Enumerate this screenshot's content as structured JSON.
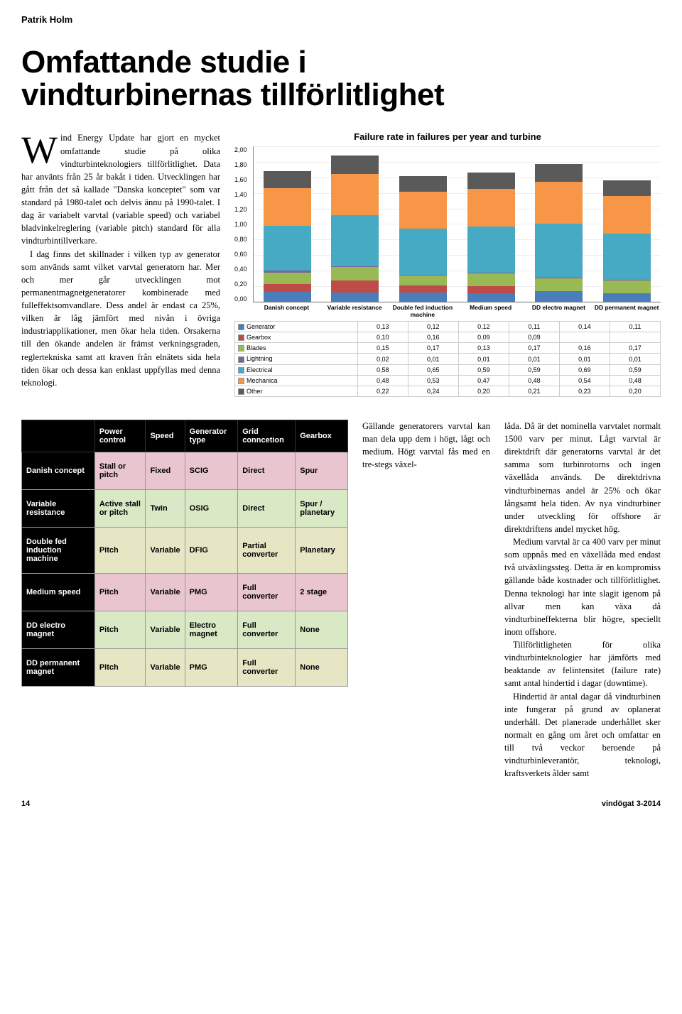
{
  "author": "Patrik Holm",
  "title_line1": "Omfattande studie i",
  "title_line2": "vindturbinernas tillförlitlighet",
  "chart": {
    "title": "Failure rate in failures per year and turbine",
    "ymax": 2.0,
    "yticks": [
      "2,00",
      "1,80",
      "1,60",
      "1,40",
      "1,20",
      "1,00",
      "0,80",
      "0,60",
      "0,40",
      "0,20",
      "0,00"
    ],
    "categories": [
      "Danish concept",
      "Variable resistance",
      "Double fed induction machine",
      "Medium speed",
      "DD electro magnet",
      "DD permanent magnet"
    ],
    "series": [
      {
        "name": "Generator",
        "color": "#4a7ebb",
        "values": [
          0.13,
          0.12,
          0.12,
          0.11,
          0.14,
          0.11
        ]
      },
      {
        "name": "Gearbox",
        "color": "#be4b48",
        "values": [
          0.1,
          0.16,
          0.09,
          0.09,
          null,
          null
        ]
      },
      {
        "name": "Blades",
        "color": "#98b954",
        "values": [
          0.15,
          0.17,
          0.13,
          0.17,
          0.16,
          0.17
        ]
      },
      {
        "name": "Lightning",
        "color": "#7d60a0",
        "values": [
          0.02,
          0.01,
          0.01,
          0.01,
          0.01,
          0.01
        ]
      },
      {
        "name": "Electrical",
        "color": "#46aac5",
        "values": [
          0.58,
          0.65,
          0.59,
          0.59,
          0.69,
          0.59
        ]
      },
      {
        "name": "Mechanica",
        "color": "#f79646",
        "values": [
          0.48,
          0.53,
          0.47,
          0.48,
          0.54,
          0.48
        ]
      },
      {
        "name": "Other",
        "color": "#5a5a5a",
        "values": [
          0.22,
          0.24,
          0.2,
          0.21,
          0.23,
          0.2
        ]
      }
    ],
    "values_text": [
      [
        "0,13",
        "0,12",
        "0,12",
        "0,11",
        "0,14",
        "0,11"
      ],
      [
        "0,10",
        "0,16",
        "0,09",
        "0,09",
        "",
        ""
      ],
      [
        "0,15",
        "0,17",
        "0,13",
        "0,17",
        "0,16",
        "0,17"
      ],
      [
        "0,02",
        "0,01",
        "0,01",
        "0,01",
        "0,01",
        "0,01"
      ],
      [
        "0,58",
        "0,65",
        "0,59",
        "0,59",
        "0,69",
        "0,59"
      ],
      [
        "0,48",
        "0,53",
        "0,47",
        "0,48",
        "0,54",
        "0,48"
      ],
      [
        "0,22",
        "0,24",
        "0,20",
        "0,21",
        "0,23",
        "0,20"
      ]
    ]
  },
  "body_left": [
    "ind Energy Update har gjort en mycket omfattande studie på olika vindturbinteknologiers tillförlitlighet. Data har använts från 25 år bakåt i tiden. Utvecklingen har gått från det så kallade \"Danska konceptet\" som var standard på 1980-talet och delvis ännu på 1990-talet. I dag är variabelt varvtal (variable speed) och variabel bladvinkelreglering (variable pitch) standard för alla vindturbintillverkare.",
    "I dag finns det skillnader i vilken typ av generator som används samt vilket varvtal generatorn har. Mer och mer går utvecklingen mot permanentmagnetgeneratorer kombinerade med fulleffektsomvandlare. Dess andel är endast ca 25%, vilken är låg jämfört med nivån i övriga industriapplikationer, men ökar hela tiden. Orsakerna till den ökande andelen är främst verkningsgraden, reglertekniska samt att kraven från elnätets sida hela tiden ökar och dessa kan enklast uppfyllas med denna teknologi."
  ],
  "body_mid": "Gällande generatorers varvtal kan man dela upp dem i högt, lågt och medium. Högt varvtal fås med en tre-stegs växel-",
  "body_right": [
    "låda. Då är det nominella varvtalet normalt 1500 varv per minut. Lågt varvtal är direktdrift där generatorns varvtal är det samma som turbinrotorns och ingen växellåda används. De direktdrivna vindturbinernas andel är 25% och ökar långsamt hela tiden. Av nya vindturbiner under utveckling för offshore är direktdriftens andel mycket hög.",
    "Medium varvtal är ca 400 varv per minut som uppnås med en växellåda med endast två utväxlingssteg. Detta är en kompromiss gällande både kostnader och tillförlitlighet. Denna teknologi har inte slagit igenom på allvar men kan växa då vindturbineffekterna blir högre, speciellt inom offshore.",
    "Tillförlitligheten för olika vindturbinteknologier har jämförts med beaktande av felintensitet (failure rate) samt antal hindertid i dagar (downtime).",
    "Hindertid är antal dagar då vindturbinen inte fungerar på grund av oplanerat underhåll. Det planerade underhållet sker normalt en gång om året och omfattar en till två veckor beroende på vindturbinleverantör, teknologi, kraftsverkets ålder samt"
  ],
  "tech_table": {
    "headers": [
      "",
      "Power control",
      "Speed",
      "Generator type",
      "Grid conncetion",
      "Gearbox"
    ],
    "rows": [
      {
        "bg": "#e8c5cf",
        "cells": [
          "Danish concept",
          "Stall or pitch",
          "Fixed",
          "SCIG",
          "Direct",
          "Spur"
        ]
      },
      {
        "bg": "#d9e8c5",
        "cells": [
          "Variable resistance",
          "Active stall or pitch",
          "Twin",
          "OSIG",
          "Direct",
          "Spur / planetary"
        ]
      },
      {
        "bg": "#e6e6c5",
        "cells": [
          "Double fed induction machine",
          "Pitch",
          "Variable",
          "DFIG",
          "Partial converter",
          "Planetary"
        ]
      },
      {
        "bg": "#e8c5cf",
        "cells": [
          "Medium speed",
          "Pitch",
          "Variable",
          "PMG",
          "Full converter",
          "2 stage"
        ]
      },
      {
        "bg": "#d9e8c5",
        "cells": [
          "DD electro magnet",
          "Pitch",
          "Variable",
          "Electro magnet",
          "Full converter",
          "None"
        ]
      },
      {
        "bg": "#e6e6c5",
        "cells": [
          "DD permanent magnet",
          "Pitch",
          "Variable",
          "PMG",
          "Full converter",
          "None"
        ]
      }
    ]
  },
  "footer_page": "14",
  "footer_pub": "vindögat 3-2014"
}
